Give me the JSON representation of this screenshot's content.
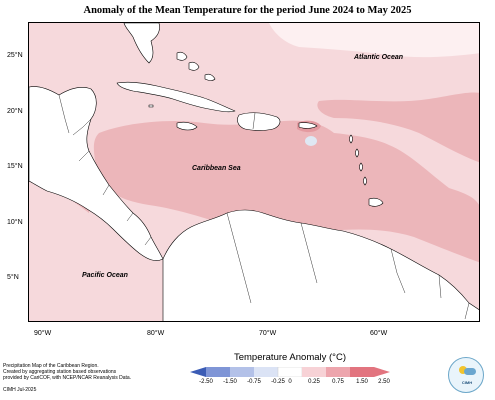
{
  "title": "Anomaly of the Mean Temperature for the period June 2024 to May 2025",
  "map": {
    "latitude_labels": [
      "25°N",
      "20°N",
      "15°N",
      "10°N",
      "5°N"
    ],
    "longitude_labels": [
      "90°W",
      "80°W",
      "70°W",
      "60°W"
    ],
    "place_labels": {
      "atlantic": "Atlantic Ocean",
      "caribbean": "Caribbean Sea",
      "pacific": "Pacific Ocean"
    },
    "anomaly_colors": {
      "near_zero": "#ffffff",
      "c_0_25_0_75": "#f6d9dc",
      "c_0_75_1_00": "#ecb6ba",
      "c_1_00_1_50": "#e49aa0",
      "land": "#ffffff",
      "coastline": "#000000"
    }
  },
  "colorbar": {
    "title": "Temperature Anomaly (°C)",
    "ticks": [
      "-2.50",
      "-1.50",
      "-0.75",
      "-0.25",
      "0",
      "0.25",
      "0.75",
      "1.50",
      "2.50"
    ],
    "colors": [
      "#3b5cb5",
      "#7f95d6",
      "#b3c1e8",
      "#dbe3f5",
      "#ffffff",
      "#f7d2d6",
      "#eda5ad",
      "#e2747f"
    ]
  },
  "footer": {
    "line1": "Precipitation Map of the Caribbean Region.",
    "line2": "Created by aggregating station based observations",
    "line3": "provided by CariCOF, with NCEP/NCAR Reanalysis Data.",
    "credit": "CIMH Jul-2025"
  },
  "logo": {
    "text": "CIMH"
  }
}
